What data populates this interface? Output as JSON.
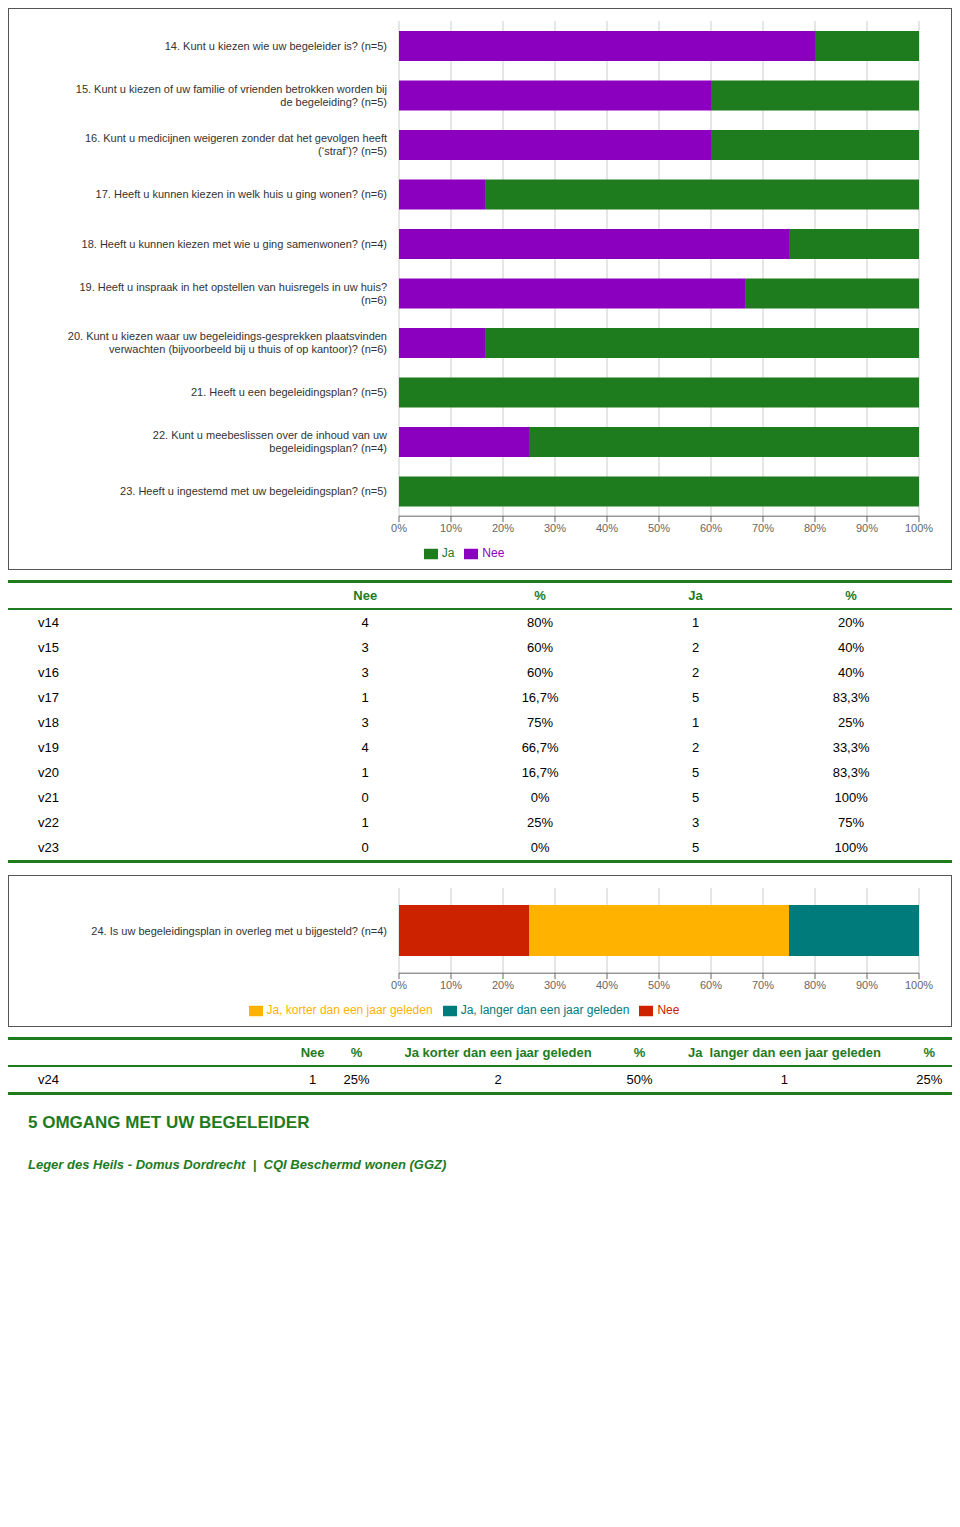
{
  "chart_data": [
    {
      "type": "bar",
      "orientation": "horizontal",
      "stacked": true,
      "grid": true,
      "legend": "bottom",
      "categories": [
        "14. Kunt u kiezen wie uw begeleider is? (n=5)",
        "15. Kunt u kiezen of uw familie of vrienden betrokken worden bij\nde begeleiding? (n=5)",
        "16. Kunt u medicijnen weigeren zonder dat het gevolgen heeft\n(‘straf’)? (n=5)",
        "17. Heeft u kunnen kiezen in welk huis u ging wonen? (n=6)",
        "18. Heeft u kunnen kiezen met wie u ging samenwonen? (n=4)",
        "19. Heeft u inspraak in het opstellen van huisregels in uw huis?\n(n=6)",
        "20. Kunt u kiezen waar uw begeleidings-gesprekken plaatsvinden\nverwachten (bijvoorbeeld bij u thuis of op kantoor)? (n=6)",
        "21. Heeft u een begeleidingsplan? (n=5)",
        "22. Kunt u meebeslissen over de inhoud van uw\nbegeleidingsplan? (n=4)",
        "23. Heeft u ingestemd met uw begeleidingsplan? (n=5)"
      ],
      "series": [
        {
          "name": "Nee",
          "color": "#8B00BF",
          "values": [
            80,
            60,
            60,
            16.7,
            75,
            66.7,
            16.7,
            0,
            25,
            0
          ]
        },
        {
          "name": "Ja",
          "color": "#1E7B1E",
          "values": [
            20,
            40,
            40,
            83.3,
            25,
            33.3,
            83.3,
            100,
            75,
            100
          ]
        }
      ],
      "xlim": [
        0,
        100
      ],
      "xticks": [
        {
          "value": 0,
          "label": "0%"
        },
        {
          "value": 10,
          "label": "10%"
        },
        {
          "value": 20,
          "label": "20%"
        },
        {
          "value": 30,
          "label": "30%"
        },
        {
          "value": 40,
          "label": "40%"
        },
        {
          "value": 50,
          "label": "50%"
        },
        {
          "value": 60,
          "label": "60%"
        },
        {
          "value": 70,
          "label": "70%"
        },
        {
          "value": 80,
          "label": "80%"
        },
        {
          "value": 90,
          "label": "90%"
        },
        {
          "value": 100,
          "label": "100%"
        }
      ],
      "table": {
        "color": "#1E7B1E",
        "header": [
          "Nee",
          "%",
          "Ja",
          "%"
        ],
        "rows": [
          {
            "label": "v14",
            "cells": [
              4,
              "80%",
              1,
              "20%"
            ]
          },
          {
            "label": "v15",
            "cells": [
              3,
              "60%",
              2,
              "40%"
            ]
          },
          {
            "label": "v16",
            "cells": [
              3,
              "60%",
              2,
              "40%"
            ]
          },
          {
            "label": "v17",
            "cells": [
              1,
              "16,7%",
              5,
              "83,3%"
            ]
          },
          {
            "label": "v18",
            "cells": [
              3,
              "75%",
              1,
              "25%"
            ]
          },
          {
            "label": "v19",
            "cells": [
              4,
              "66,7%",
              2,
              "33,3%"
            ]
          },
          {
            "label": "v20",
            "cells": [
              1,
              "16,7%",
              5,
              "83,3%"
            ]
          },
          {
            "label": "v21",
            "cells": [
              0,
              "0%",
              5,
              "100%"
            ]
          },
          {
            "label": "v22",
            "cells": [
              1,
              "25%",
              3,
              "75%"
            ]
          },
          {
            "label": "v23",
            "cells": [
              0,
              "0%",
              5,
              "100%"
            ]
          }
        ]
      }
    },
    {
      "type": "bar",
      "orientation": "horizontal",
      "stacked": true,
      "grid": true,
      "legend": "bottom",
      "categories": [
        "24. Is uw begeleidingsplan in overleg met u bijgesteld? (n=4)"
      ],
      "series": [
        {
          "name": "Nee",
          "color": "#CC2200",
          "values": [
            25
          ]
        },
        {
          "name": "Ja, korter dan een jaar geleden",
          "color": "#FFB300",
          "values": [
            50
          ]
        },
        {
          "name": "Ja, langer dan een jaar geleden",
          "color": "#007B7B",
          "values": [
            25
          ]
        }
      ],
      "xlim": [
        0,
        100
      ],
      "xticks": [
        {
          "value": 0,
          "label": "0%"
        },
        {
          "value": 10,
          "label": "10%"
        },
        {
          "value": 20,
          "label": "20%"
        },
        {
          "value": 30,
          "label": "30%"
        },
        {
          "value": 40,
          "label": "40%"
        },
        {
          "value": 50,
          "label": "50%"
        },
        {
          "value": 60,
          "label": "60%"
        },
        {
          "value": 70,
          "label": "70%"
        },
        {
          "value": 80,
          "label": "80%"
        },
        {
          "value": 90,
          "label": "90%"
        },
        {
          "value": 100,
          "label": "100%"
        }
      ],
      "table": {
        "color": "#1E7B1E",
        "header": [
          "Nee",
          "%",
          "Ja korter dan een jaar geleden",
          "%",
          "Ja  langer dan een jaar geleden",
          "%"
        ],
        "rows": [
          {
            "label": "v24",
            "cells": [
              1,
              "25%",
              2,
              "50%",
              1,
              "25%"
            ]
          }
        ]
      },
      "annotations": [
        "5 OMGANG MET UW BEGELEIDER",
        "Leger des Heils - Domus Dordrecht  |  CQI Beschermd wonen (GGZ)"
      ],
      "color": "#1E7B1E"
    }
  ]
}
